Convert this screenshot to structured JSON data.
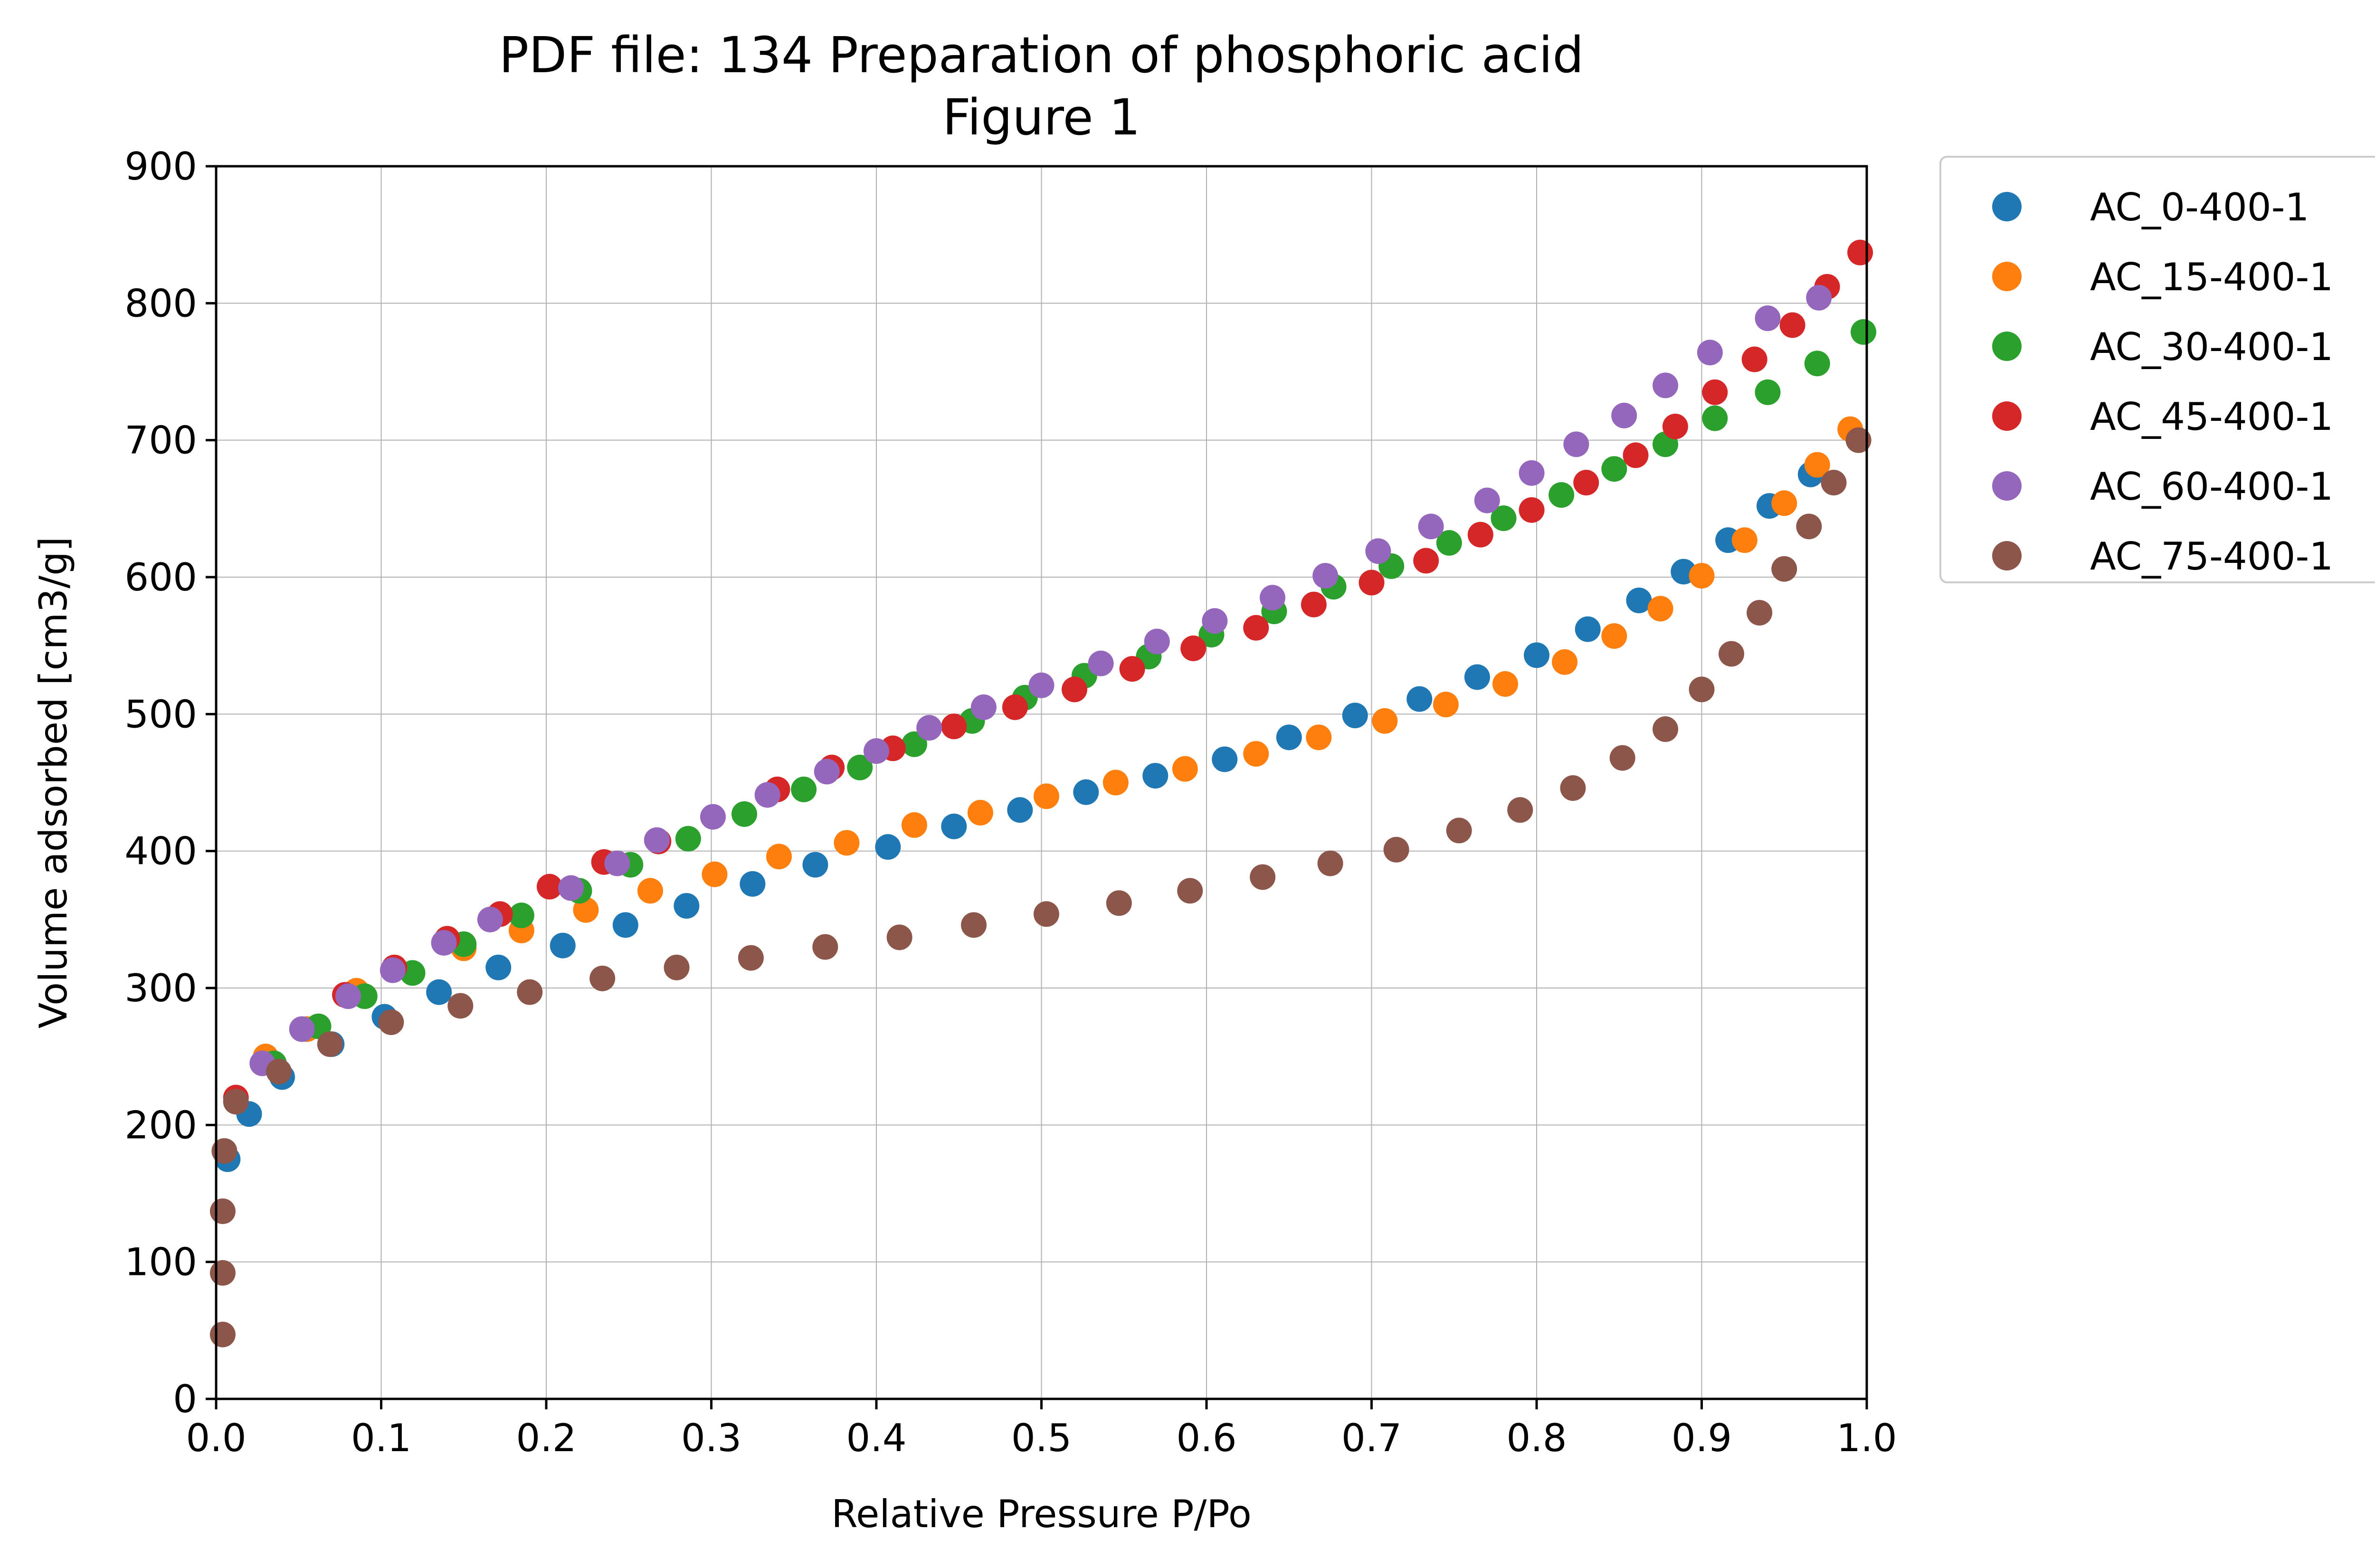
{
  "chart_data": {
    "type": "scatter",
    "title": "PDF file: 134 Preparation of phosphoric acid",
    "subtitle": "Figure 1",
    "xlabel": "Relative Pressure P/Po",
    "ylabel": "Volume adsorbed [cm3/g]",
    "xlim": [
      0.0,
      1.0
    ],
    "ylim": [
      0,
      900
    ],
    "xticks": [
      "0.0",
      "0.1",
      "0.2",
      "0.3",
      "0.4",
      "0.5",
      "0.6",
      "0.7",
      "0.8",
      "0.9",
      "1.0"
    ],
    "yticks": [
      "0",
      "100",
      "200",
      "300",
      "400",
      "500",
      "600",
      "700",
      "800",
      "900"
    ],
    "grid": true,
    "legend_position": "outside-right",
    "series": [
      {
        "name": "AC_0-400-1",
        "color": "#1f77b4",
        "x": [
          0.007,
          0.02,
          0.04,
          0.07,
          0.102,
          0.135,
          0.171,
          0.21,
          0.248,
          0.285,
          0.325,
          0.363,
          0.407,
          0.447,
          0.487,
          0.527,
          0.569,
          0.611,
          0.65,
          0.69,
          0.729,
          0.764,
          0.8,
          0.831,
          0.862,
          0.889,
          0.916,
          0.941,
          0.966
        ],
        "y": [
          175,
          208,
          235,
          259,
          279,
          297,
          315,
          331,
          346,
          360,
          376,
          390,
          403,
          418,
          430,
          443,
          455,
          467,
          483,
          499,
          511,
          527,
          543,
          562,
          583,
          604,
          627,
          652,
          675
        ]
      },
      {
        "name": "AC_15-400-1",
        "color": "#ff7f0e",
        "x": [
          0.03,
          0.055,
          0.085,
          0.15,
          0.185,
          0.224,
          0.263,
          0.302,
          0.341,
          0.382,
          0.423,
          0.463,
          0.503,
          0.545,
          0.587,
          0.63,
          0.668,
          0.708,
          0.745,
          0.781,
          0.817,
          0.847,
          0.875,
          0.9,
          0.926,
          0.95,
          0.97,
          0.99
        ],
        "y": [
          250,
          270,
          298,
          329,
          342,
          357,
          371,
          383,
          396,
          406,
          419,
          428,
          440,
          450,
          460,
          471,
          483,
          495,
          507,
          522,
          538,
          557,
          577,
          601,
          627,
          654,
          682,
          708
        ]
      },
      {
        "name": "AC_30-400-1",
        "color": "#2ca02c",
        "x": [
          0.035,
          0.062,
          0.09,
          0.119,
          0.15,
          0.185,
          0.22,
          0.251,
          0.286,
          0.32,
          0.356,
          0.39,
          0.423,
          0.458,
          0.49,
          0.526,
          0.565,
          0.603,
          0.641,
          0.677,
          0.712,
          0.747,
          0.78,
          0.815,
          0.847,
          0.878,
          0.908,
          0.94,
          0.97,
          0.998
        ],
        "y": [
          245,
          272,
          294,
          311,
          332,
          353,
          371,
          390,
          409,
          427,
          445,
          461,
          478,
          495,
          512,
          528,
          542,
          558,
          575,
          593,
          608,
          625,
          643,
          660,
          679,
          697,
          716,
          735,
          756,
          779
        ]
      },
      {
        "name": "AC_45-400-1",
        "color": "#d62728",
        "x": [
          0.012,
          0.078,
          0.108,
          0.14,
          0.172,
          0.202,
          0.235,
          0.268,
          0.34,
          0.373,
          0.41,
          0.447,
          0.484,
          0.52,
          0.555,
          0.592,
          0.63,
          0.665,
          0.7,
          0.733,
          0.766,
          0.797,
          0.83,
          0.86,
          0.884,
          0.908,
          0.932,
          0.955,
          0.976,
          0.996
        ],
        "y": [
          220,
          295,
          315,
          336,
          354,
          374,
          392,
          407,
          445,
          461,
          475,
          491,
          505,
          518,
          533,
          548,
          563,
          580,
          596,
          612,
          631,
          649,
          669,
          689,
          710,
          735,
          759,
          784,
          812,
          837
        ]
      },
      {
        "name": "AC_60-400-1",
        "color": "#9467bd",
        "x": [
          0.028,
          0.052,
          0.08,
          0.107,
          0.138,
          0.166,
          0.215,
          0.243,
          0.267,
          0.301,
          0.334,
          0.37,
          0.4,
          0.432,
          0.465,
          0.5,
          0.536,
          0.57,
          0.605,
          0.64,
          0.672,
          0.704,
          0.736,
          0.77,
          0.797,
          0.824,
          0.853,
          0.878,
          0.905,
          0.94,
          0.971
        ],
        "y": [
          245,
          270,
          294,
          313,
          333,
          350,
          373,
          391,
          408,
          425,
          441,
          458,
          473,
          490,
          505,
          521,
          537,
          553,
          568,
          585,
          601,
          619,
          637,
          656,
          676,
          697,
          718,
          740,
          764,
          789,
          804
        ]
      },
      {
        "name": "AC_75-400-1",
        "color": "#8c564b",
        "x": [
          0.004,
          0.004,
          0.004,
          0.005,
          0.012,
          0.038,
          0.069,
          0.106,
          0.148,
          0.19,
          0.234,
          0.279,
          0.324,
          0.369,
          0.414,
          0.459,
          0.503,
          0.547,
          0.59,
          0.634,
          0.675,
          0.715,
          0.753,
          0.79,
          0.822,
          0.852,
          0.878,
          0.9,
          0.918,
          0.935,
          0.95,
          0.965,
          0.98,
          0.995
        ],
        "y": [
          47,
          92,
          137,
          181,
          217,
          239,
          259,
          275,
          287,
          297,
          307,
          315,
          322,
          330,
          337,
          346,
          354,
          362,
          371,
          381,
          391,
          401,
          415,
          430,
          446,
          468,
          489,
          518,
          544,
          574,
          606,
          637,
          669,
          700
        ]
      }
    ]
  }
}
